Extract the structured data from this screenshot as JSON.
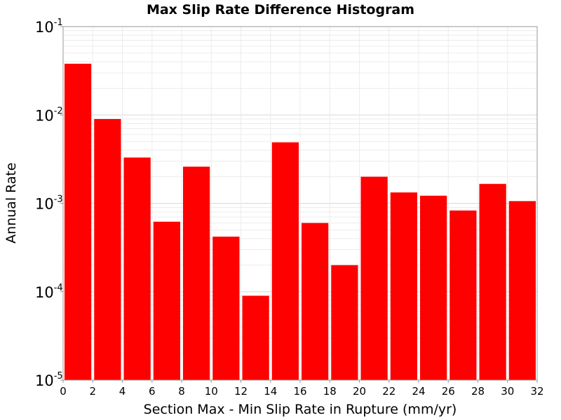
{
  "chart_data": {
    "type": "bar",
    "title": "Max Slip Rate Difference Histogram",
    "xlabel": "Section Max - Min Slip Rate in Rupture (mm/yr)",
    "ylabel": "Annual Rate",
    "y_scale": "log",
    "xlim": [
      0,
      32
    ],
    "ylim": [
      1e-05,
      0.1
    ],
    "grid": true,
    "bar_color": "#ff0000",
    "x_ticks": [
      "0",
      "2",
      "4",
      "6",
      "8",
      "10",
      "12",
      "14",
      "16",
      "18",
      "20",
      "22",
      "24",
      "26",
      "28",
      "30",
      "32"
    ],
    "y_ticks": [
      {
        "base": "10",
        "exp": "-1",
        "value": 0.1
      },
      {
        "base": "10",
        "exp": "-2",
        "value": 0.01
      },
      {
        "base": "10",
        "exp": "-3",
        "value": 0.001
      },
      {
        "base": "10",
        "exp": "-4",
        "value": 0.0001
      },
      {
        "base": "10",
        "exp": "-5",
        "value": 1e-05
      }
    ],
    "bin_width": 2,
    "bins": [
      {
        "x": 1,
        "value": 0.038
      },
      {
        "x": 3,
        "value": 0.009
      },
      {
        "x": 5,
        "value": 0.0033
      },
      {
        "x": 7,
        "value": 0.00062
      },
      {
        "x": 9,
        "value": 0.0026
      },
      {
        "x": 11,
        "value": 0.00042
      },
      {
        "x": 13,
        "value": 9e-05
      },
      {
        "x": 15,
        "value": 0.0049
      },
      {
        "x": 17,
        "value": 0.0006
      },
      {
        "x": 19,
        "value": 0.0002
      },
      {
        "x": 21,
        "value": 0.002
      },
      {
        "x": 23,
        "value": 0.00133
      },
      {
        "x": 25,
        "value": 0.00122
      },
      {
        "x": 27,
        "value": 0.00083
      },
      {
        "x": 29,
        "value": 0.00166
      },
      {
        "x": 31,
        "value": 0.00106
      }
    ]
  }
}
